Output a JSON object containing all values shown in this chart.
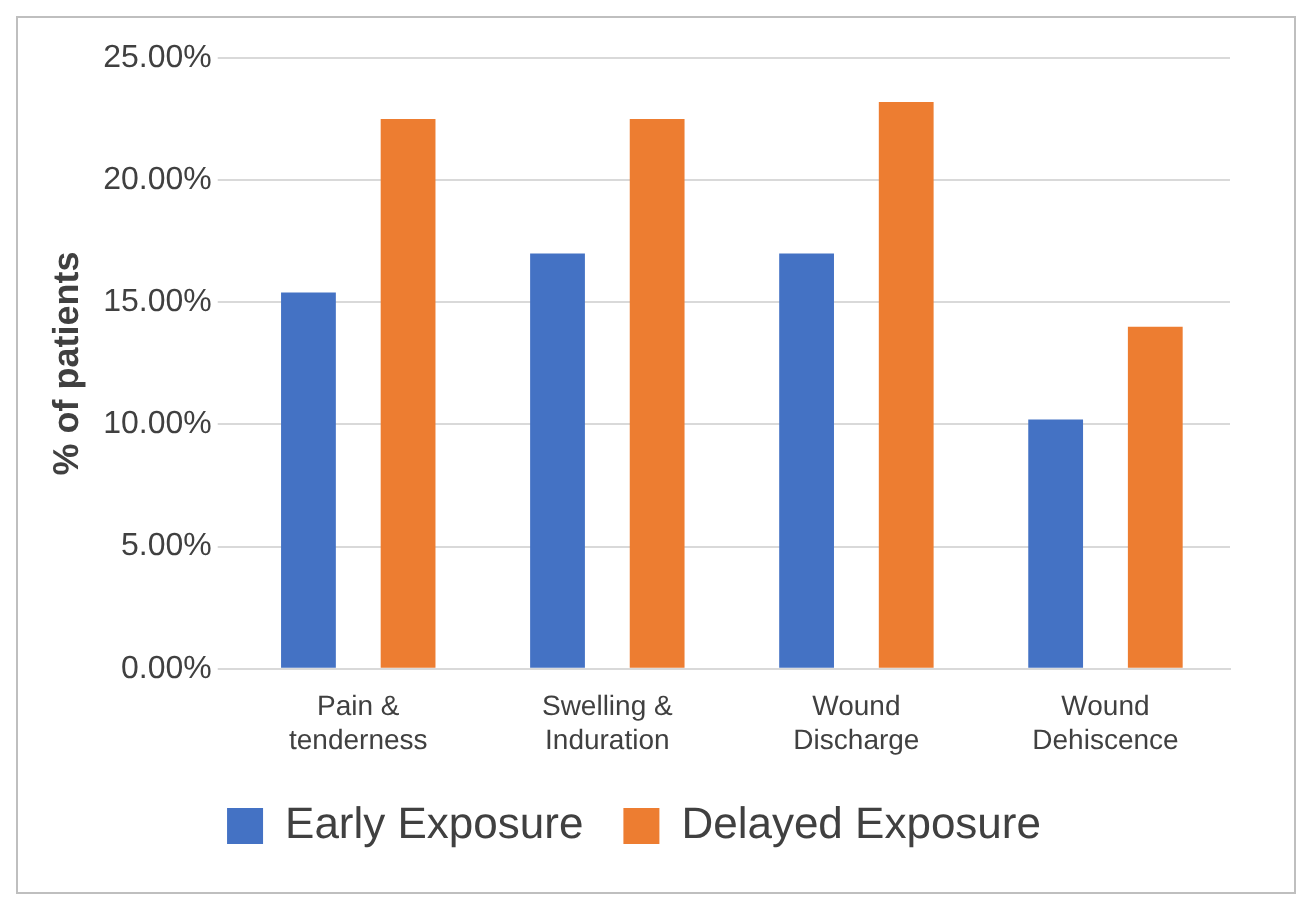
{
  "chart_data": {
    "type": "bar",
    "ylabel": "% of patients",
    "categories": [
      "Pain & tenderness",
      "Swelling & Induration",
      "Wound Discharge",
      "Wound Dehiscence"
    ],
    "series": [
      {
        "name": "Early Exposure",
        "color": "#4472c4",
        "values": [
          15.4,
          17,
          17,
          10.2
        ]
      },
      {
        "name": "Delayed Exposure",
        "color": "#ed7d31",
        "values": [
          22.5,
          22.5,
          23.2,
          14
        ]
      }
    ],
    "ylim": [
      0,
      25
    ],
    "yticks": [
      {
        "value": 0,
        "label": "0.00%"
      },
      {
        "value": 5,
        "label": "5.00%"
      },
      {
        "value": 10,
        "label": "10.00%"
      },
      {
        "value": 15,
        "label": "15.00%"
      },
      {
        "value": 20,
        "label": "20.00%"
      },
      {
        "value": 25,
        "label": "25.00%"
      }
    ],
    "grid": "y",
    "legend": "bottom"
  }
}
